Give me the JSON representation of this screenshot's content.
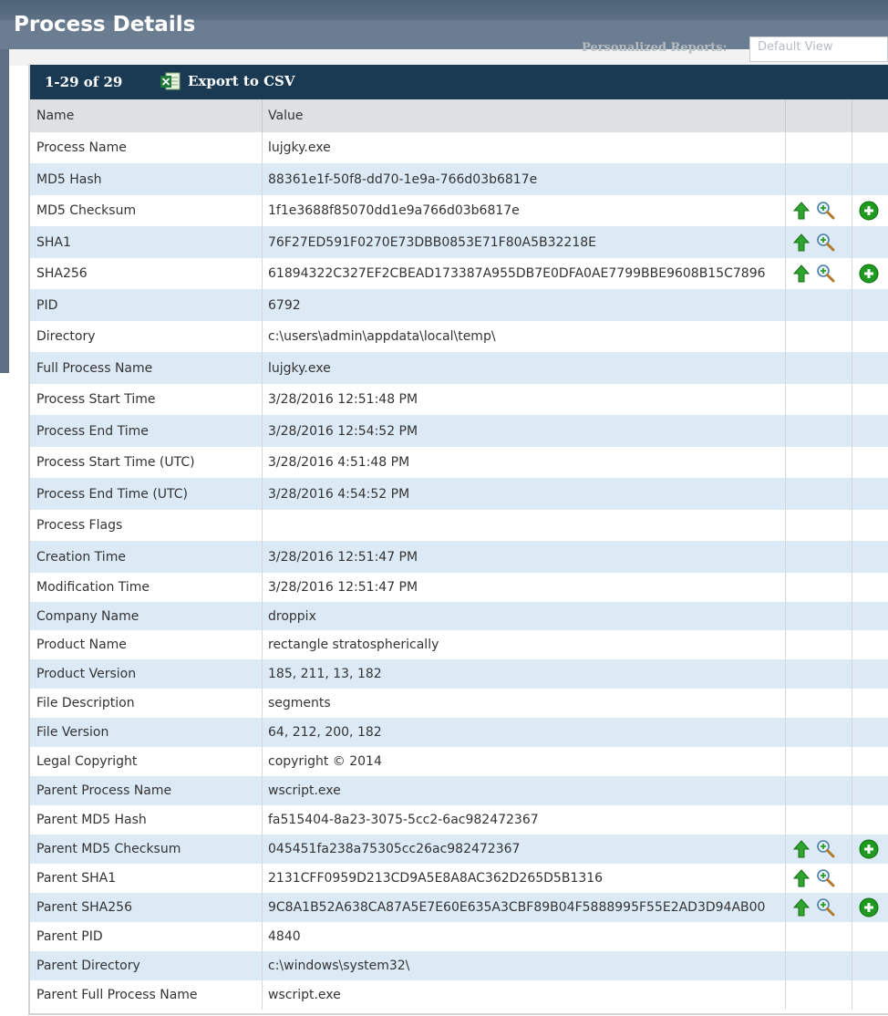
{
  "page": {
    "title": "Process Details"
  },
  "background": {
    "report_label": "Personalized Reports:",
    "view_select": "Default View"
  },
  "toolbar": {
    "range": "1-29 of 29",
    "export_label": "Export to CSV"
  },
  "table": {
    "columns": [
      "Name",
      "Value",
      "",
      ""
    ],
    "rows": [
      {
        "name": "Process Name",
        "value": "lujgky.exe",
        "actions": false,
        "add": false
      },
      {
        "name": "MD5 Hash",
        "value": "88361e1f-50f8-dd70-1e9a-766d03b6817e",
        "actions": false,
        "add": false
      },
      {
        "name": "MD5 Checksum",
        "value": "1f1e3688f85070dd1e9a766d03b6817e",
        "actions": true,
        "add": true
      },
      {
        "name": "SHA1",
        "value": "76F27ED591F0270E73DBB0853E71F80A5B32218E",
        "actions": true,
        "add": false
      },
      {
        "name": "SHA256",
        "value": "61894322C327EF2CBEAD173387A955DB7E0DFA0AE7799BBE9608B15C7896",
        "actions": true,
        "add": true
      },
      {
        "name": "PID",
        "value": "6792",
        "actions": false,
        "add": false
      },
      {
        "name": "Directory",
        "value": "c:\\users\\admin\\appdata\\local\\temp\\",
        "actions": false,
        "add": false
      },
      {
        "name": "Full Process Name",
        "value": "lujgky.exe",
        "actions": false,
        "add": false
      },
      {
        "name": "Process Start Time",
        "value": "3/28/2016 12:51:48 PM",
        "actions": false,
        "add": false
      },
      {
        "name": "Process End Time",
        "value": "3/28/2016 12:54:52 PM",
        "actions": false,
        "add": false
      },
      {
        "name": "Process Start Time (UTC)",
        "value": "3/28/2016 4:51:48 PM",
        "actions": false,
        "add": false
      },
      {
        "name": "Process End Time (UTC)",
        "value": "3/28/2016 4:54:52 PM",
        "actions": false,
        "add": false
      },
      {
        "name": "Process Flags",
        "value": "",
        "actions": false,
        "add": false
      },
      {
        "name": "Creation Time",
        "value": "3/28/2016 12:51:47 PM",
        "actions": false,
        "add": false
      },
      {
        "name": "Modification Time",
        "value": "3/28/2016 12:51:47 PM",
        "actions": false,
        "add": false
      },
      {
        "name": "Company Name",
        "value": "droppix",
        "actions": false,
        "add": false
      },
      {
        "name": "Product Name",
        "value": "rectangle stratospherically",
        "actions": false,
        "add": false
      },
      {
        "name": "Product Version",
        "value": "185, 211, 13, 182",
        "actions": false,
        "add": false
      },
      {
        "name": "File Description",
        "value": "segments",
        "actions": false,
        "add": false
      },
      {
        "name": "File Version",
        "value": "64, 212, 200, 182",
        "actions": false,
        "add": false
      },
      {
        "name": "Legal Copyright",
        "value": "copyright © 2014",
        "actions": false,
        "add": false
      },
      {
        "name": "Parent Process Name",
        "value": "wscript.exe",
        "actions": false,
        "add": false
      },
      {
        "name": "Parent MD5 Hash",
        "value": "fa515404-8a23-3075-5cc2-6ac982472367",
        "actions": false,
        "add": false
      },
      {
        "name": "Parent MD5 Checksum",
        "value": "045451fa238a75305cc26ac982472367",
        "actions": true,
        "add": true
      },
      {
        "name": "Parent SHA1",
        "value": "2131CFF0959D213CD9A5E8A8AC362D265D5B1316",
        "actions": true,
        "add": false
      },
      {
        "name": "Parent SHA256",
        "value": "9C8A1B52A638CA87A5E7E60E635A3CBF89B04F5888995F55E2AD3D94AB00",
        "actions": true,
        "add": true
      },
      {
        "name": "Parent PID",
        "value": "4840",
        "actions": false,
        "add": false
      },
      {
        "name": "Parent Directory",
        "value": "c:\\windows\\system32\\",
        "actions": false,
        "add": false
      },
      {
        "name": "Parent Full Process Name",
        "value": "wscript.exe",
        "actions": false,
        "add": false
      }
    ]
  },
  "icons": {
    "up": "green-up-arrow-icon",
    "zoom": "magnifier-plus-icon",
    "add": "green-plus-circle-icon",
    "excel": "excel-icon"
  },
  "colors": {
    "toolbar": "#1a3a54",
    "title_bar": "#5e7186",
    "row_alt": "#dceaf6",
    "header": "#dde1e4",
    "green": "#1e9b1e"
  }
}
